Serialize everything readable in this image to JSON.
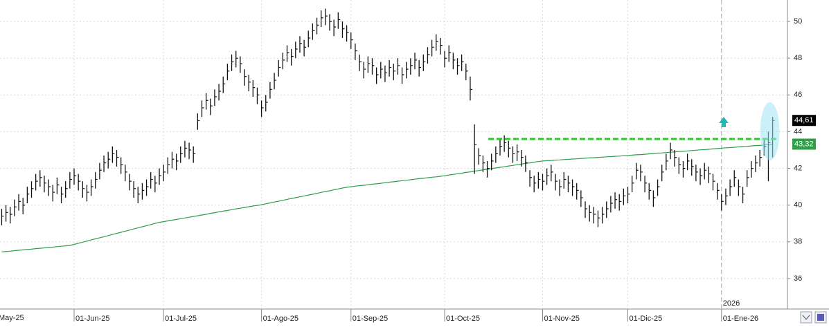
{
  "chart_data": {
    "type": "ohlc",
    "partial_x_label": "May-25",
    "year_marker": "2026",
    "categories": [
      null,
      null,
      null,
      null,
      null,
      null,
      null,
      null,
      null,
      null,
      null,
      null,
      null,
      null,
      null,
      null,
      null,
      "01-Jun-25",
      null,
      null,
      null,
      null,
      null,
      null,
      null,
      null,
      null,
      null,
      null,
      null,
      null,
      null,
      null,
      null,
      null,
      null,
      null,
      null,
      "01-Jul-25",
      null,
      null,
      null,
      null,
      null,
      null,
      null,
      null,
      null,
      null,
      null,
      null,
      null,
      null,
      null,
      null,
      null,
      null,
      null,
      null,
      null,
      null,
      "01-Ago-25",
      null,
      null,
      null,
      null,
      null,
      null,
      null,
      null,
      null,
      null,
      null,
      null,
      null,
      null,
      null,
      null,
      null,
      null,
      null,
      null,
      "01-Sep-25",
      null,
      null,
      null,
      null,
      null,
      null,
      null,
      null,
      null,
      null,
      null,
      null,
      null,
      null,
      null,
      null,
      null,
      null,
      null,
      null,
      null,
      "01-Oct-25",
      null,
      null,
      null,
      null,
      null,
      null,
      null,
      null,
      null,
      null,
      null,
      null,
      null,
      null,
      null,
      null,
      null,
      null,
      null,
      null,
      null,
      null,
      "01-Nov-25",
      null,
      null,
      null,
      null,
      null,
      null,
      null,
      null,
      null,
      null,
      null,
      null,
      null,
      null,
      null,
      null,
      null,
      null,
      null,
      "01-Dic-25",
      null,
      null,
      null,
      null,
      null,
      null,
      null,
      null,
      null,
      null,
      null,
      null,
      null,
      null,
      null,
      null,
      null,
      null,
      null,
      null,
      null,
      "01-Ene-26",
      null,
      null,
      null,
      null,
      null,
      null,
      null,
      null,
      null,
      null,
      null,
      null
    ],
    "high": [
      39.8,
      40.0,
      39.9,
      40.3,
      40.6,
      40.4,
      41.0,
      41.3,
      41.7,
      41.9,
      41.6,
      41.4,
      41.1,
      41.5,
      41.0,
      41.3,
      41.8,
      42.0,
      41.7,
      41.3,
      41.1,
      41.4,
      41.8,
      42.3,
      42.7,
      42.9,
      43.2,
      43.0,
      42.6,
      42.2,
      41.7,
      41.3,
      41.0,
      41.2,
      41.4,
      41.8,
      41.6,
      42.0,
      42.2,
      42.6,
      42.9,
      42.8,
      43.2,
      43.5,
      43.4,
      43.2,
      45.0,
      45.7,
      46.1,
      45.8,
      46.3,
      46.6,
      47.0,
      47.7,
      48.2,
      48.4,
      48.1,
      47.4,
      47.1,
      46.8,
      46.4,
      45.7,
      46.0,
      46.7,
      47.2,
      47.9,
      48.3,
      48.7,
      48.5,
      48.9,
      49.2,
      49.0,
      49.5,
      49.9,
      50.2,
      50.6,
      50.7,
      50.4,
      50.1,
      50.5,
      50.0,
      49.8,
      49.4,
      48.8,
      48.2,
      47.8,
      48.1,
      48.0,
      47.5,
      47.8,
      47.6,
      47.9,
      47.7,
      48.0,
      47.5,
      47.8,
      48.0,
      48.3,
      47.9,
      48.2,
      48.6,
      49.0,
      49.3,
      49.1,
      48.4,
      48.7,
      48.3,
      48.0,
      48.2,
      47.7,
      47.0,
      44.4,
      43.1,
      42.7,
      42.4,
      42.8,
      43.2,
      43.6,
      43.8,
      43.5,
      43.2,
      43.3,
      43.0,
      42.7,
      41.9,
      41.6,
      41.8,
      41.7,
      42.0,
      42.2,
      41.7,
      41.4,
      41.8,
      41.6,
      41.4,
      41.2,
      40.8,
      40.2,
      40.0,
      39.9,
      39.7,
      39.9,
      40.2,
      40.5,
      40.7,
      40.6,
      40.9,
      41.0,
      41.6,
      42.3,
      42.2,
      41.6,
      41.2,
      40.8,
      41.4,
      42.2,
      42.8,
      43.4,
      43.0,
      42.6,
      42.4,
      42.8,
      42.5,
      42.2,
      42.0,
      42.3,
      42.1,
      41.7,
      41.2,
      40.6,
      40.9,
      41.4,
      41.9,
      41.4,
      41.0,
      41.9,
      42.4,
      42.7,
      43.0,
      43.6,
      44.0,
      44.8
    ],
    "low": [
      38.9,
      39.1,
      39.0,
      39.4,
      39.7,
      39.5,
      40.1,
      40.4,
      40.8,
      41.0,
      40.7,
      40.5,
      40.2,
      40.6,
      40.1,
      40.4,
      40.9,
      41.1,
      40.8,
      40.4,
      40.2,
      40.5,
      40.9,
      41.4,
      41.8,
      42.0,
      42.3,
      42.1,
      41.7,
      41.3,
      40.8,
      40.4,
      40.1,
      40.3,
      40.5,
      40.9,
      40.7,
      41.1,
      41.3,
      41.7,
      42.0,
      41.9,
      42.3,
      42.6,
      42.5,
      42.3,
      44.1,
      44.8,
      45.2,
      44.9,
      45.4,
      45.7,
      46.1,
      46.8,
      47.3,
      47.5,
      47.2,
      46.5,
      46.2,
      45.9,
      45.5,
      44.8,
      45.1,
      45.8,
      46.3,
      47.0,
      47.4,
      47.8,
      47.6,
      48.0,
      48.3,
      48.1,
      48.6,
      49.0,
      49.3,
      49.7,
      49.8,
      49.5,
      49.2,
      49.6,
      49.1,
      48.9,
      48.5,
      47.9,
      47.3,
      46.9,
      47.2,
      47.1,
      46.6,
      46.9,
      46.7,
      47.0,
      46.8,
      47.1,
      46.6,
      46.9,
      47.1,
      47.4,
      47.0,
      47.3,
      47.7,
      48.1,
      48.4,
      48.2,
      47.5,
      47.8,
      47.4,
      47.1,
      47.3,
      46.8,
      45.7,
      41.7,
      42.2,
      41.8,
      41.5,
      41.9,
      42.3,
      42.7,
      42.9,
      42.6,
      42.3,
      42.4,
      42.1,
      41.8,
      41.0,
      40.7,
      40.9,
      40.8,
      41.1,
      41.3,
      40.8,
      40.5,
      40.9,
      40.7,
      40.5,
      40.3,
      39.9,
      39.3,
      39.1,
      39.0,
      38.8,
      39.0,
      39.3,
      39.6,
      39.8,
      39.7,
      40.0,
      40.1,
      40.7,
      41.4,
      41.3,
      40.7,
      40.3,
      39.9,
      40.5,
      41.3,
      41.9,
      42.5,
      42.1,
      41.7,
      41.5,
      41.9,
      41.6,
      41.3,
      41.1,
      41.4,
      41.2,
      40.8,
      40.3,
      39.7,
      40.0,
      40.5,
      41.0,
      40.5,
      40.1,
      41.0,
      41.5,
      41.8,
      42.1,
      42.7,
      41.3,
      42.6
    ],
    "close": [
      39.4,
      39.6,
      39.5,
      39.9,
      40.2,
      40.0,
      40.6,
      40.9,
      41.3,
      41.5,
      41.2,
      41.0,
      40.7,
      41.1,
      40.6,
      40.9,
      41.4,
      41.6,
      41.3,
      40.9,
      40.7,
      41.0,
      41.4,
      41.9,
      42.3,
      42.5,
      42.8,
      42.6,
      42.2,
      41.8,
      41.3,
      40.9,
      40.6,
      40.8,
      41.0,
      41.4,
      41.2,
      41.6,
      41.8,
      42.2,
      42.5,
      42.4,
      42.8,
      43.1,
      43.0,
      42.8,
      44.6,
      45.3,
      45.7,
      45.4,
      45.9,
      46.2,
      46.6,
      47.3,
      47.8,
      48.0,
      47.7,
      47.0,
      46.7,
      46.4,
      46.0,
      45.3,
      45.6,
      46.3,
      46.8,
      47.5,
      47.9,
      48.3,
      48.1,
      48.5,
      48.8,
      48.6,
      49.1,
      49.5,
      49.8,
      50.2,
      50.3,
      50.0,
      49.7,
      50.1,
      49.6,
      49.4,
      49.0,
      48.4,
      47.8,
      47.4,
      47.7,
      47.6,
      47.1,
      47.4,
      47.2,
      47.5,
      47.3,
      47.6,
      47.1,
      47.4,
      47.6,
      47.9,
      47.5,
      47.8,
      48.2,
      48.6,
      48.9,
      48.7,
      48.0,
      48.3,
      47.9,
      47.6,
      47.8,
      47.3,
      46.3,
      43.3,
      42.7,
      42.3,
      42.0,
      42.4,
      42.8,
      43.2,
      43.4,
      43.1,
      42.8,
      42.9,
      42.6,
      42.3,
      41.5,
      41.2,
      41.4,
      41.3,
      41.6,
      41.8,
      41.3,
      41.0,
      41.4,
      41.2,
      41.0,
      40.8,
      40.4,
      39.8,
      39.6,
      39.5,
      39.3,
      39.5,
      39.8,
      40.1,
      40.3,
      40.2,
      40.5,
      40.6,
      41.2,
      41.9,
      41.8,
      41.2,
      40.8,
      40.4,
      41.0,
      41.8,
      42.4,
      43.0,
      42.6,
      42.2,
      42.0,
      42.4,
      42.1,
      41.8,
      41.6,
      41.9,
      41.7,
      41.3,
      40.8,
      40.2,
      40.5,
      41.0,
      41.5,
      41.0,
      40.6,
      41.5,
      42.0,
      42.3,
      42.6,
      43.2,
      43.4,
      44.61
    ],
    "color": "#111111",
    "last_close_label": "44,61",
    "ma": {
      "color": "#2e9e48",
      "last_label": "43,32",
      "values": [
        37.45,
        37.47,
        37.49,
        37.52,
        37.54,
        37.56,
        37.58,
        37.6,
        37.63,
        37.65,
        37.67,
        37.69,
        37.71,
        37.74,
        37.76,
        37.78,
        37.8,
        37.86,
        37.92,
        37.98,
        38.04,
        38.1,
        38.16,
        38.22,
        38.28,
        38.34,
        38.4,
        38.46,
        38.52,
        38.58,
        38.64,
        38.7,
        38.76,
        38.82,
        38.88,
        38.94,
        39.0,
        39.06,
        39.1,
        39.14,
        39.18,
        39.22,
        39.26,
        39.3,
        39.34,
        39.38,
        39.42,
        39.46,
        39.5,
        39.55,
        39.59,
        39.63,
        39.67,
        39.71,
        39.75,
        39.79,
        39.83,
        39.87,
        39.91,
        39.95,
        39.98,
        40.02,
        40.07,
        40.12,
        40.17,
        40.21,
        40.26,
        40.31,
        40.36,
        40.4,
        40.45,
        40.5,
        40.55,
        40.59,
        40.64,
        40.69,
        40.74,
        40.78,
        40.83,
        40.88,
        40.93,
        40.97,
        41.0,
        41.03,
        41.06,
        41.08,
        41.11,
        41.14,
        41.16,
        41.19,
        41.22,
        41.25,
        41.27,
        41.3,
        41.33,
        41.35,
        41.38,
        41.41,
        41.44,
        41.46,
        41.49,
        41.52,
        41.54,
        41.57,
        41.6,
        41.64,
        41.67,
        41.71,
        41.74,
        41.78,
        41.81,
        41.85,
        41.88,
        41.92,
        41.95,
        41.99,
        42.02,
        42.06,
        42.09,
        42.13,
        42.16,
        42.2,
        42.23,
        42.27,
        42.3,
        42.34,
        42.37,
        42.4,
        42.42,
        42.43,
        42.45,
        42.46,
        42.48,
        42.49,
        42.51,
        42.52,
        42.54,
        42.55,
        42.57,
        42.58,
        42.6,
        42.61,
        42.63,
        42.64,
        42.66,
        42.67,
        42.69,
        42.7,
        42.72,
        42.74,
        42.75,
        42.77,
        42.79,
        42.81,
        42.83,
        42.84,
        42.86,
        42.88,
        42.9,
        42.92,
        42.93,
        42.95,
        42.97,
        42.99,
        43.01,
        43.02,
        43.04,
        43.06,
        43.08,
        43.1,
        43.12,
        43.13,
        43.15,
        43.17,
        43.19,
        43.2,
        43.22,
        43.24,
        43.25,
        43.27,
        43.29,
        43.32
      ]
    },
    "hline": {
      "value": 43.6,
      "color": "#22cc22"
    },
    "ylim": [
      34.34,
      51.17
    ],
    "yticks": [
      36,
      38,
      40,
      42,
      44,
      46,
      48,
      50
    ],
    "grid": true
  }
}
